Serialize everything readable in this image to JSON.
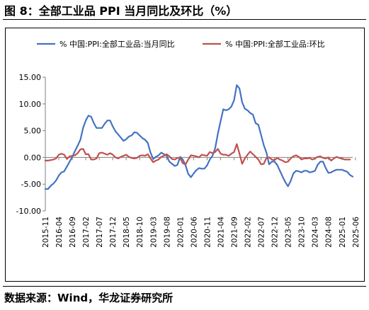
{
  "figure": {
    "title": "图 8：全部工业品 PPI 当月同比及环比（%）",
    "source": "数据来源：Wind，华龙证券研究所"
  },
  "colors": {
    "yoy": "#4472C4",
    "mom": "#C0504D",
    "axis": "#808080"
  },
  "chart_data": {
    "type": "line",
    "title": "",
    "xlabel": "",
    "ylabel": "",
    "ylim": [
      -10,
      15
    ],
    "yticks": [
      15,
      10,
      5,
      0,
      -5,
      -10
    ],
    "ytick_labels": [
      "15.00",
      "10.00",
      "5.00",
      "0.00",
      "-5.00",
      "-10.00"
    ],
    "grid": false,
    "legend_position": "top",
    "x_tick_labels": [
      "2015-11",
      "2016-04",
      "2016-09",
      "2017-02",
      "2017-07",
      "2017-12",
      "2018-05",
      "2018-10",
      "2019-03",
      "2019-08",
      "2020-01",
      "2020-06",
      "2020-11",
      "2021-04",
      "2021-09",
      "2022-02",
      "2022-07",
      "2022-12",
      "2023-05",
      "2023-10",
      "2024-03",
      "2024-08",
      "2025-01",
      "2025-06"
    ],
    "x_start": "2015-11",
    "x_end": "2025-06",
    "series": [
      {
        "name": "% 中国:PPI:全部工业品:当月同比",
        "color": "#4472C4",
        "values": [
          -5.9,
          -5.9,
          -5.3,
          -4.9,
          -4.3,
          -3.4,
          -2.8,
          -2.6,
          -1.7,
          -0.8,
          0.1,
          1.2,
          2.2,
          3.3,
          5.5,
          6.9,
          7.8,
          7.6,
          6.4,
          5.5,
          5.5,
          5.5,
          6.3,
          6.9,
          6.9,
          5.8,
          4.9,
          4.3,
          3.7,
          3.1,
          3.4,
          3.9,
          4.1,
          4.7,
          4.6,
          4.1,
          3.6,
          3.3,
          2.7,
          0.9,
          -0.3,
          0.1,
          0.4,
          0.9,
          0.6,
          0.3,
          -0.8,
          -1.2,
          -1.6,
          -1.4,
          0.1,
          -0.4,
          -1.5,
          -3.1,
          -3.7,
          -3.0,
          -2.4,
          -2.0,
          -2.1,
          -2.1,
          -1.5,
          -0.4,
          0.3,
          1.7,
          4.4,
          6.8,
          9.0,
          8.8,
          9.0,
          9.5,
          10.7,
          13.5,
          12.9,
          10.3,
          9.1,
          8.8,
          8.3,
          8.0,
          6.4,
          6.1,
          4.2,
          2.3,
          0.9,
          -1.3,
          -0.8,
          -0.8,
          -1.4,
          -2.5,
          -3.6,
          -4.6,
          -5.4,
          -4.4,
          -3.0,
          -2.5,
          -2.6,
          -2.8,
          -2.5,
          -2.5,
          -2.8,
          -2.7,
          -2.5,
          -1.4,
          -0.8,
          -0.8,
          -2.0,
          -2.9,
          -2.8,
          -2.5,
          -2.3,
          -2.3,
          -2.3,
          -2.5,
          -2.7,
          -3.3,
          -3.6
        ]
      },
      {
        "name": "% 中国:PPI:全部工业品:环比",
        "color": "#C0504D",
        "values": [
          -0.6,
          -0.6,
          -0.5,
          -0.4,
          -0.2,
          0.5,
          0.7,
          0.5,
          -0.3,
          0.2,
          0.3,
          0.4,
          0.8,
          1.5,
          1.6,
          0.6,
          0.6,
          -0.4,
          -0.4,
          -0.2,
          0.8,
          0.9,
          0.7,
          0.5,
          0.8,
          0.5,
          0.0,
          -0.2,
          0.1,
          0.3,
          0.5,
          0.1,
          -0.1,
          -0.2,
          -0.1,
          0.3,
          0.4,
          0.3,
          0.6,
          -0.2,
          -0.9,
          -0.6,
          -0.4,
          0.1,
          0.3,
          0.6,
          0.2,
          -0.3,
          -0.4,
          -0.1,
          -0.1,
          -1.1,
          -1.3,
          -0.4,
          0.4,
          0.3,
          0.2,
          0.0,
          0.5,
          0.4,
          0.3,
          1.0,
          0.8,
          1.0,
          1.6,
          0.7,
          0.5,
          0.5,
          0.3,
          0.7,
          1.0,
          2.5,
          0.7,
          -1.2,
          -0.2,
          0.5,
          1.1,
          0.6,
          0.1,
          -0.4,
          -1.3,
          -1.2,
          -0.1,
          0.0,
          -0.4,
          -0.5,
          -0.1,
          -0.4,
          -0.6,
          -0.9,
          -0.8,
          -0.2,
          0.2,
          0.4,
          0.1,
          -0.4,
          -0.2,
          -0.2,
          -0.1,
          -0.4,
          -0.2,
          0.1,
          0.2,
          -0.1,
          -0.2,
          0.0,
          -0.6,
          -0.2,
          0.1,
          -0.1,
          -0.2,
          -0.4,
          -0.4,
          -0.4
        ]
      }
    ]
  }
}
